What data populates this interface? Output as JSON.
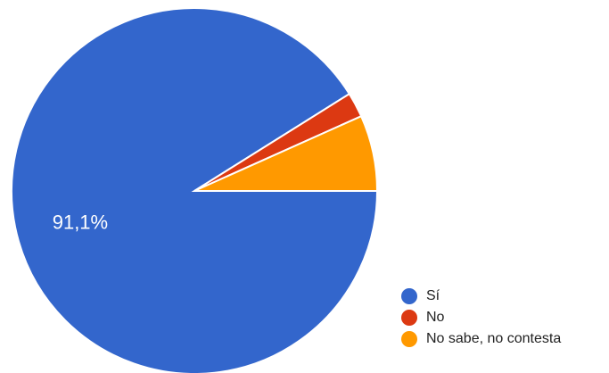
{
  "chart_data": {
    "type": "pie",
    "title": "",
    "categories": [
      "Sí",
      "No",
      "No sabe, no contesta"
    ],
    "values": [
      91.1,
      2.2,
      6.7
    ],
    "colors": [
      "#3366cc",
      "#dc3912",
      "#ff9900"
    ],
    "data_labels": [
      "91,1%",
      "",
      ""
    ],
    "legend": {
      "position": "bottom-right",
      "items": [
        {
          "label": "Sí",
          "color": "#3366cc"
        },
        {
          "label": "No",
          "color": "#dc3912"
        },
        {
          "label": "No sabe, no contesta",
          "color": "#ff9900"
        }
      ]
    }
  }
}
